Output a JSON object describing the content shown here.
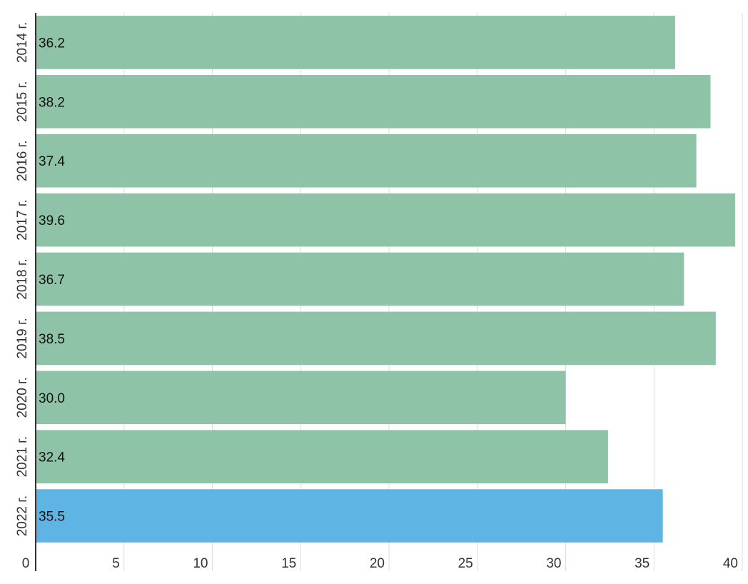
{
  "chart_data": {
    "type": "bar",
    "orientation": "horizontal",
    "categories": [
      "2014 г.",
      "2015 г.",
      "2016 г.",
      "2017 г.",
      "2018 г.",
      "2019 г.",
      "2020 г.",
      "2021 г.",
      "2022 г."
    ],
    "values": [
      36.2,
      38.2,
      37.4,
      39.6,
      36.7,
      38.5,
      30.0,
      32.4,
      35.5
    ],
    "value_labels": [
      "36.2",
      "38.2",
      "37.4",
      "39.6",
      "36.7",
      "38.5",
      "30.0",
      "32.4",
      "35.5"
    ],
    "xlim": [
      0,
      40
    ],
    "x_ticks": [
      "0",
      "5",
      "10",
      "15",
      "20",
      "25",
      "30",
      "35",
      "40"
    ],
    "grid": true,
    "colors": {
      "default": "#8fc3a8",
      "highlight": "#5eb5e3"
    },
    "highlight_category": "2022 г."
  }
}
